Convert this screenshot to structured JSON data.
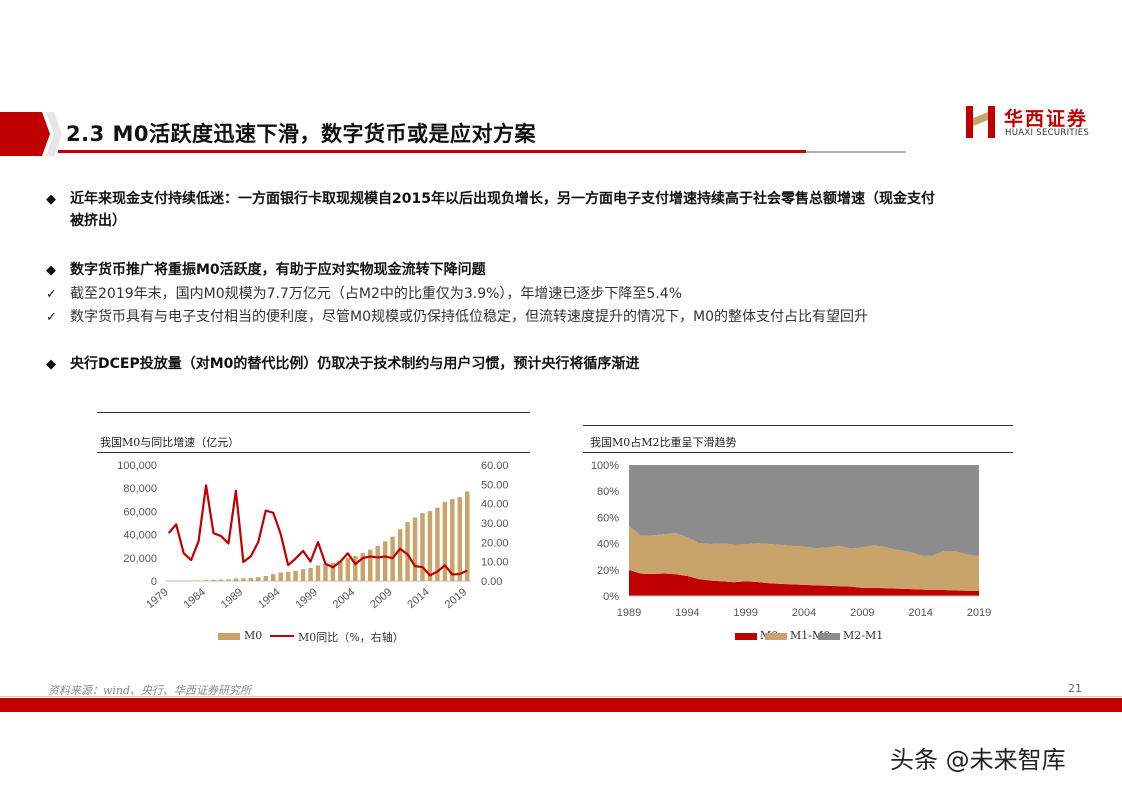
{
  "header": {
    "title": "2.3 M0活跃度迅速下滑，数字货币或是应对方案",
    "logo_cn": "华西证券",
    "logo_en": "HUAXI SECURITIES"
  },
  "bullets": [
    {
      "mark": "◆",
      "text": "近年来现金支付持续低迷：一方面银行卡取现规模自2015年以后出现负增长，另一方面电子支付增速持续高于社会零售总额增速（现金支付",
      "text2": "被挤出）"
    },
    {
      "mark": "◆",
      "text": "数字货币推广将重振M0活跃度，有助于应对实物现金流转下降问题"
    },
    {
      "mark": "✓",
      "text": "截至2019年末，国内M0规模为7.7万亿元（占M2中的比重仅为3.9%），年增速已逐步下降至5.4%"
    },
    {
      "mark": "✓",
      "text": "数字货币具有与电子支付相当的便利度，尽管M0规模或仍保持低位稳定，但流转速度提升的情况下，M0的整体支付占比有望回升"
    },
    {
      "mark": "◆",
      "text": "央行DCEP投放量（对M0的替代比例）仍取决于技术制约与用户习惯，预计央行将循序渐进"
    }
  ],
  "chart_data": [
    {
      "type": "bar",
      "title": "我国M0与同比增速（亿元）",
      "x": [
        1979,
        1980,
        1981,
        1982,
        1983,
        1984,
        1985,
        1986,
        1987,
        1988,
        1989,
        1990,
        1991,
        1992,
        1993,
        1994,
        1995,
        1996,
        1997,
        1998,
        1999,
        2000,
        2001,
        2002,
        2003,
        2004,
        2005,
        2006,
        2007,
        2008,
        2009,
        2010,
        2011,
        2012,
        2013,
        2014,
        2015,
        2016,
        2017,
        2018,
        2019
      ],
      "x_tick_labels": [
        "1979",
        "1984",
        "1989",
        "1994",
        "1999",
        "2004",
        "2009",
        "2014",
        "2019"
      ],
      "series": [
        {
          "name": "M0",
          "axis": "left",
          "kind": "bar",
          "color": "#c9a46a",
          "values": [
            268,
            346,
            396,
            439,
            530,
            792,
            988,
            1218,
            1455,
            2134,
            2344,
            2644,
            3178,
            4336,
            5865,
            7289,
            7886,
            8802,
            10178,
            11204,
            13456,
            14653,
            15689,
            17278,
            19746,
            21468,
            24032,
            27073,
            30375,
            34219,
            38247,
            44628,
            50749,
            54660,
            58574,
            60260,
            63217,
            68304,
            70646,
            72208,
            77190
          ]
        },
        {
          "name": "M0同比（%，右轴）",
          "axis": "right",
          "kind": "line",
          "color": "#c00000",
          "values": [
            24.8,
            29.3,
            14.4,
            10.8,
            20.6,
            49.5,
            24.7,
            23.3,
            19.4,
            46.7,
            9.8,
            12.8,
            20.2,
            36.4,
            35.3,
            24.3,
            8.2,
            11.6,
            15.6,
            10.1,
            20.1,
            8.9,
            7.1,
            10.1,
            14.3,
            8.7,
            11.9,
            12.7,
            12.2,
            12.7,
            11.8,
            16.7,
            13.8,
            7.7,
            7.2,
            2.9,
            4.9,
            8.1,
            3.4,
            3.6,
            5.4
          ]
        }
      ],
      "y_left": {
        "ticks": [
          "100,000",
          "80,000",
          "60,000",
          "40,000",
          "20,000",
          "0"
        ],
        "ylim": [
          0,
          100000
        ]
      },
      "y_right": {
        "ticks": [
          "60.00",
          "50.00",
          "40.00",
          "30.00",
          "20.00",
          "10.00",
          "0.00"
        ],
        "ylim": [
          0,
          60
        ]
      }
    },
    {
      "type": "area",
      "title": "我国M0占M2比重呈下滑趋势",
      "x": [
        1989,
        1990,
        1991,
        1992,
        1993,
        1994,
        1995,
        1996,
        1997,
        1998,
        1999,
        2000,
        2001,
        2002,
        2003,
        2004,
        2005,
        2006,
        2007,
        2008,
        2009,
        2010,
        2011,
        2012,
        2013,
        2014,
        2015,
        2016,
        2017,
        2018,
        2019
      ],
      "x_tick_labels": [
        "1989",
        "1994",
        "1999",
        "2004",
        "2009",
        "2014",
        "2019"
      ],
      "y_ticks": [
        "100%",
        "80%",
        "60%",
        "40%",
        "20%",
        "0%"
      ],
      "ylim": [
        0,
        100
      ],
      "series": [
        {
          "name": "M0",
          "color": "#c00000",
          "values": [
            19.8,
            17.1,
            16.8,
            17.2,
            16.6,
            15.3,
            12.9,
            11.7,
            11.3,
            10.5,
            11.3,
            10.7,
            9.7,
            9.3,
            8.9,
            8.5,
            8.1,
            7.8,
            7.4,
            7.2,
            6.2,
            6.2,
            5.9,
            5.6,
            5.3,
            5.0,
            4.6,
            4.6,
            4.2,
            4.0,
            3.9
          ]
        },
        {
          "name": "M1-M0",
          "color": "#c9a46a",
          "values": [
            33.8,
            28.9,
            29.5,
            29.9,
            31.5,
            29.7,
            27.5,
            28.0,
            28.9,
            28.8,
            28.2,
            29.6,
            30.0,
            29.7,
            29.4,
            29.2,
            28.4,
            29.1,
            31.0,
            29.0,
            31.0,
            32.4,
            31.5,
            29.6,
            28.6,
            26.0,
            26.0,
            29.7,
            29.9,
            27.8,
            26.5
          ]
        },
        {
          "name": "M2-M1",
          "color": "#8c8c8c",
          "values": [
            46.4,
            54.0,
            53.7,
            52.9,
            51.9,
            55.0,
            59.6,
            60.3,
            59.8,
            60.7,
            60.5,
            59.7,
            60.3,
            61.0,
            61.7,
            62.3,
            63.5,
            63.1,
            61.6,
            63.8,
            62.8,
            61.4,
            62.6,
            64.8,
            66.1,
            69.0,
            69.4,
            65.7,
            65.9,
            68.2,
            69.6
          ]
        }
      ]
    }
  ],
  "footer": {
    "source": "资料来源：wind、央行、华西证券研究所",
    "page": "21"
  },
  "watermark": "头条 @未来智库"
}
